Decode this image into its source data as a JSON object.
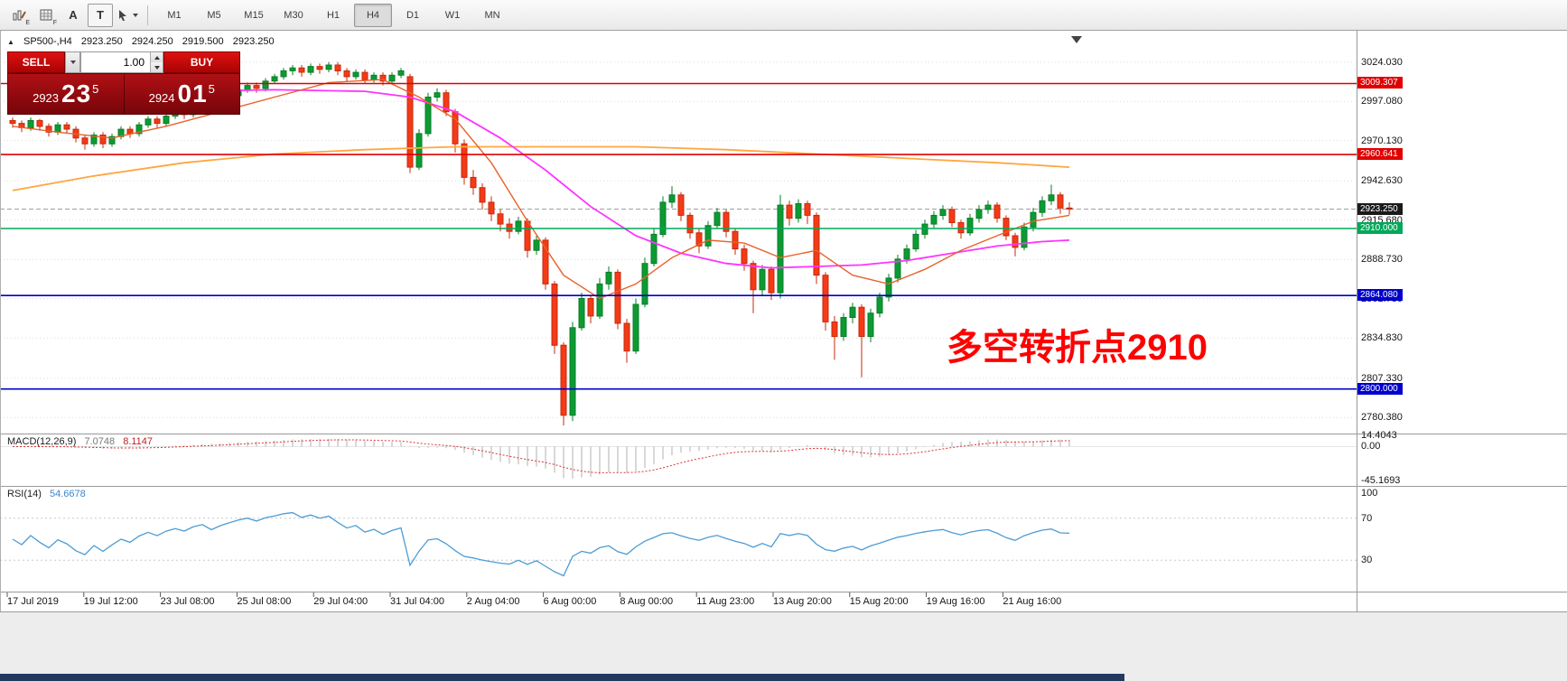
{
  "toolbar": {
    "icons": [
      {
        "name": "chart-pencil-icon",
        "sub": "E"
      },
      {
        "name": "grid-properties-icon",
        "sub": "F"
      },
      {
        "name": "arrow-label-icon",
        "glyph": "A"
      },
      {
        "name": "text-tool-icon",
        "glyph": "T"
      },
      {
        "name": "cursor-tool-icon",
        "sub": ""
      }
    ],
    "timeframes": [
      "M1",
      "M5",
      "M15",
      "M30",
      "H1",
      "H4",
      "D1",
      "W1",
      "MN"
    ],
    "active_timeframe": "H4"
  },
  "chart_header": {
    "symbol": "SP500-,H4",
    "open": "2923.250",
    "high": "2924.250",
    "low": "2919.500",
    "close": "2923.250"
  },
  "trade_panel": {
    "sell_label": "SELL",
    "buy_label": "BUY",
    "volume": "1.00",
    "bid_int": "2923",
    "bid_pips": "23",
    "bid_sub": "5",
    "ask_int": "2924",
    "ask_pips": "01",
    "ask_sub": "5"
  },
  "annotation": {
    "text": "多空转折点2910",
    "color": "#FF0000"
  },
  "current_price": 2923.25,
  "hlines": [
    {
      "price": 3009.307,
      "color": "#E00000"
    },
    {
      "price": 2960.641,
      "color": "#E00000"
    },
    {
      "price": 2910.0,
      "color": "#00A859"
    },
    {
      "price": 2864.08,
      "color": "#0000CC"
    },
    {
      "price": 2800.0,
      "color": "#0000CC"
    }
  ],
  "price_axis": {
    "badges": [
      {
        "label": "3009.307",
        "price": 3009.307,
        "color": "#E00000"
      },
      {
        "label": "2960.641",
        "price": 2960.641,
        "color": "#E00000"
      },
      {
        "label": "2923.250",
        "price": 2923.25,
        "color": "#1a1a1a"
      },
      {
        "label": "2910.000",
        "price": 2910.0,
        "color": "#00A859"
      },
      {
        "label": "2864.080",
        "price": 2864.08,
        "color": "#0000CC"
      },
      {
        "label": "2800.000",
        "price": 2800.0,
        "color": "#0000CC"
      }
    ]
  },
  "macd": {
    "label": "MACD(12,26,9)",
    "value_main": "7.0748",
    "value_signal": "8.1147",
    "axis": [
      "14.4043",
      "0.00",
      "-45.1693"
    ],
    "signal_color": "#E03232",
    "bar_color": "#b0b0b0"
  },
  "rsi": {
    "label": "RSI(14)",
    "value": "54.6678",
    "axis": [
      "100",
      "70",
      "30"
    ],
    "levels": [
      70,
      30
    ],
    "line_color": "#4C9CD4"
  },
  "time_axis": [
    "17 Jul 2019",
    "19 Jul 12:00",
    "23 Jul 08:00",
    "25 Jul 08:00",
    "29 Jul 04:00",
    "31 Jul 04:00",
    "2 Aug 04:00",
    "6 Aug 00:00",
    "8 Aug 00:00",
    "11 Aug 23:00",
    "13 Aug 20:00",
    "15 Aug 20:00",
    "19 Aug 16:00",
    "21 Aug 16:00"
  ],
  "chart_data": {
    "type": "candlestick",
    "symbol": "SP500-",
    "timeframe": "H4",
    "y_ticks": [
      "3024.030",
      "2997.080",
      "2970.130",
      "2942.630",
      "2915.680",
      "2888.730",
      "2861.780",
      "2834.830",
      "2807.330",
      "2780.380"
    ],
    "price_range": [
      2769.5,
      3045.5
    ],
    "colors": {
      "up": "#0C9B33",
      "up_dark": "#087D27",
      "down": "#F43A16",
      "down_dark": "#C52B0C",
      "ma_slow": "#FFA640",
      "ma_medium": "#FF33FF",
      "ma_fast": "#E8622B"
    },
    "ohlc": [
      [
        2984,
        2986,
        2979,
        2982
      ],
      [
        2982,
        2984,
        2976,
        2979
      ],
      [
        2979,
        2986,
        2977,
        2984
      ],
      [
        2984,
        2985,
        2977,
        2980
      ],
      [
        2980,
        2982,
        2973,
        2976
      ],
      [
        2976,
        2983,
        2974,
        2981
      ],
      [
        2981,
        2983,
        2975,
        2978
      ],
      [
        2978,
        2980,
        2969,
        2972
      ],
      [
        2972,
        2974,
        2964,
        2968
      ],
      [
        2968,
        2976,
        2966,
        2974
      ],
      [
        2974,
        2976,
        2965,
        2968
      ],
      [
        2968,
        2975,
        2966,
        2973
      ],
      [
        2973,
        2980,
        2971,
        2978
      ],
      [
        2978,
        2980,
        2972,
        2975
      ],
      [
        2975,
        2983,
        2973,
        2981
      ],
      [
        2981,
        2987,
        2979,
        2985
      ],
      [
        2985,
        2987,
        2979,
        2982
      ],
      [
        2982,
        2989,
        2980,
        2987
      ],
      [
        2987,
        2992,
        2985,
        2990
      ],
      [
        2990,
        2992,
        2985,
        2988
      ],
      [
        2988,
        2995,
        2986,
        2993
      ],
      [
        2993,
        2998,
        2991,
        2996
      ],
      [
        2996,
        2998,
        2989,
        2992
      ],
      [
        2992,
        2999,
        2990,
        2997
      ],
      [
        2997,
        3003,
        2995,
        3001
      ],
      [
        3001,
        3007,
        2999,
        3005
      ],
      [
        3005,
        3010,
        3003,
        3008
      ],
      [
        3008,
        3010,
        3003,
        3006
      ],
      [
        3006,
        3013,
        3004,
        3011
      ],
      [
        3011,
        3016,
        3009,
        3014
      ],
      [
        3014,
        3020,
        3012,
        3018
      ],
      [
        3018,
        3022,
        3015,
        3020
      ],
      [
        3020,
        3022,
        3014,
        3017
      ],
      [
        3017,
        3023,
        3015,
        3021
      ],
      [
        3021,
        3023,
        3016,
        3019
      ],
      [
        3019,
        3024,
        3017,
        3022
      ],
      [
        3022,
        3024,
        3015,
        3018
      ],
      [
        3018,
        3020,
        3011,
        3014
      ],
      [
        3014,
        3019,
        3012,
        3017
      ],
      [
        3017,
        3019,
        3009,
        3012
      ],
      [
        3012,
        3017,
        3010,
        3015
      ],
      [
        3015,
        3017,
        3008,
        3011
      ],
      [
        3011,
        3017,
        3009,
        3015
      ],
      [
        3015,
        3020,
        3013,
        3018
      ],
      [
        3014,
        3016,
        2948,
        2952
      ],
      [
        2952,
        2978,
        2950,
        2975
      ],
      [
        2975,
        3003,
        2973,
        3000
      ],
      [
        3000,
        3006,
        2997,
        3003
      ],
      [
        3003,
        3005,
        2987,
        2990
      ],
      [
        2990,
        2992,
        2962,
        2968
      ],
      [
        2968,
        2971,
        2940,
        2945
      ],
      [
        2945,
        2950,
        2933,
        2938
      ],
      [
        2938,
        2941,
        2923,
        2928
      ],
      [
        2928,
        2932,
        2915,
        2920
      ],
      [
        2920,
        2923,
        2908,
        2913
      ],
      [
        2913,
        2917,
        2903,
        2908
      ],
      [
        2908,
        2918,
        2906,
        2915
      ],
      [
        2915,
        2917,
        2890,
        2895
      ],
      [
        2895,
        2905,
        2892,
        2902
      ],
      [
        2902,
        2904,
        2868,
        2872
      ],
      [
        2872,
        2874,
        2824,
        2830
      ],
      [
        2830,
        2832,
        2775,
        2782
      ],
      [
        2782,
        2846,
        2778,
        2842
      ],
      [
        2842,
        2866,
        2840,
        2862
      ],
      [
        2862,
        2864,
        2845,
        2850
      ],
      [
        2850,
        2876,
        2848,
        2872
      ],
      [
        2872,
        2884,
        2868,
        2880
      ],
      [
        2880,
        2882,
        2841,
        2845
      ],
      [
        2845,
        2848,
        2818,
        2826
      ],
      [
        2826,
        2862,
        2824,
        2858
      ],
      [
        2858,
        2890,
        2856,
        2886
      ],
      [
        2886,
        2910,
        2884,
        2906
      ],
      [
        2906,
        2932,
        2904,
        2928
      ],
      [
        2928,
        2939,
        2924,
        2933
      ],
      [
        2933,
        2935,
        2915,
        2919
      ],
      [
        2919,
        2921,
        2903,
        2907
      ],
      [
        2907,
        2910,
        2893,
        2898
      ],
      [
        2898,
        2915,
        2896,
        2912
      ],
      [
        2912,
        2924,
        2910,
        2921
      ],
      [
        2921,
        2923,
        2904,
        2908
      ],
      [
        2908,
        2910,
        2892,
        2896
      ],
      [
        2896,
        2899,
        2881,
        2886
      ],
      [
        2886,
        2888,
        2852,
        2868
      ],
      [
        2868,
        2885,
        2864,
        2882
      ],
      [
        2882,
        2884,
        2861,
        2866
      ],
      [
        2866,
        2933,
        2862,
        2926
      ],
      [
        2926,
        2929,
        2912,
        2917
      ],
      [
        2917,
        2930,
        2914,
        2927
      ],
      [
        2927,
        2929,
        2913,
        2919
      ],
      [
        2919,
        2921,
        2872,
        2878
      ],
      [
        2878,
        2880,
        2840,
        2846
      ],
      [
        2846,
        2850,
        2820,
        2836
      ],
      [
        2836,
        2852,
        2833,
        2849
      ],
      [
        2849,
        2859,
        2845,
        2856
      ],
      [
        2856,
        2858,
        2808,
        2836
      ],
      [
        2836,
        2855,
        2832,
        2852
      ],
      [
        2852,
        2866,
        2849,
        2863
      ],
      [
        2863,
        2879,
        2860,
        2876
      ],
      [
        2876,
        2892,
        2873,
        2889
      ],
      [
        2889,
        2899,
        2886,
        2896
      ],
      [
        2896,
        2909,
        2894,
        2906
      ],
      [
        2906,
        2916,
        2903,
        2913
      ],
      [
        2913,
        2922,
        2910,
        2919
      ],
      [
        2919,
        2926,
        2916,
        2923
      ],
      [
        2923,
        2925,
        2911,
        2914
      ],
      [
        2914,
        2916,
        2903,
        2907
      ],
      [
        2907,
        2920,
        2905,
        2917
      ],
      [
        2917,
        2926,
        2914,
        2923
      ],
      [
        2923,
        2929,
        2920,
        2926
      ],
      [
        2926,
        2928,
        2914,
        2917
      ],
      [
        2917,
        2919,
        2902,
        2905
      ],
      [
        2905,
        2907,
        2891,
        2897
      ],
      [
        2897,
        2914,
        2895,
        2911
      ],
      [
        2911,
        2924,
        2908,
        2921
      ],
      [
        2921,
        2932,
        2918,
        2929
      ],
      [
        2929,
        2940,
        2926,
        2933
      ],
      [
        2933,
        2935,
        2920,
        2924
      ],
      [
        2924,
        2928,
        2919.5,
        2923.25
      ]
    ],
    "ma": {
      "slow": [
        [
          0,
          2936
        ],
        [
          9,
          2946
        ],
        [
          19,
          2955
        ],
        [
          29,
          2961
        ],
        [
          39,
          2964
        ],
        [
          49,
          2966
        ],
        [
          59,
          2966
        ],
        [
          69,
          2966
        ],
        [
          79,
          2964
        ],
        [
          89,
          2961
        ],
        [
          99,
          2958
        ],
        [
          109,
          2955
        ],
        [
          117,
          2952
        ]
      ],
      "medium": [
        [
          0,
          3003
        ],
        [
          9,
          3003
        ],
        [
          19,
          3004
        ],
        [
          29,
          3005
        ],
        [
          39,
          3004
        ],
        [
          44,
          3000
        ],
        [
          49,
          2990
        ],
        [
          54,
          2972
        ],
        [
          59,
          2950
        ],
        [
          64,
          2925
        ],
        [
          69,
          2905
        ],
        [
          74,
          2893
        ],
        [
          79,
          2886
        ],
        [
          84,
          2883
        ],
        [
          89,
          2884
        ],
        [
          94,
          2885
        ],
        [
          99,
          2888
        ],
        [
          104,
          2893
        ],
        [
          109,
          2898
        ],
        [
          114,
          2901
        ],
        [
          117,
          2902
        ]
      ],
      "fast": [
        [
          0,
          2980
        ],
        [
          5,
          2976
        ],
        [
          11,
          2972
        ],
        [
          17,
          2980
        ],
        [
          23,
          2990
        ],
        [
          29,
          3000
        ],
        [
          35,
          3010
        ],
        [
          41,
          3012
        ],
        [
          45,
          3000
        ],
        [
          49,
          2985
        ],
        [
          53,
          2955
        ],
        [
          57,
          2915
        ],
        [
          61,
          2878
        ],
        [
          65,
          2862
        ],
        [
          69,
          2872
        ],
        [
          73,
          2890
        ],
        [
          77,
          2902
        ],
        [
          81,
          2900
        ],
        [
          85,
          2890
        ],
        [
          89,
          2895
        ],
        [
          93,
          2878
        ],
        [
          97,
          2872
        ],
        [
          101,
          2882
        ],
        [
          105,
          2895
        ],
        [
          109,
          2905
        ],
        [
          113,
          2915
        ],
        [
          117,
          2919
        ]
      ]
    }
  }
}
